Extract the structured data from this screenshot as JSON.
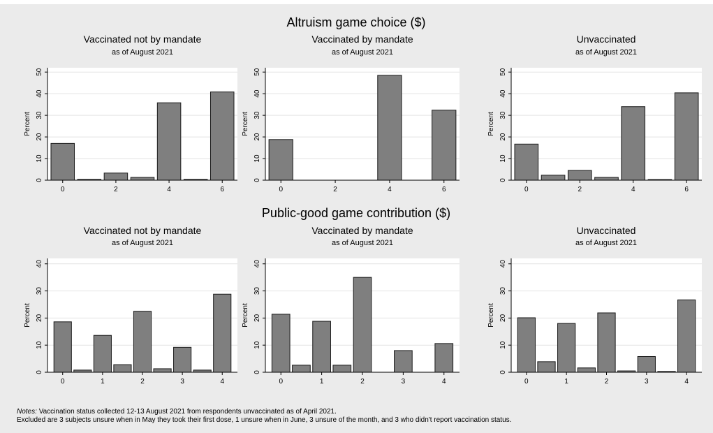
{
  "top_strip": "",
  "panels": [
    {
      "title": "Altruism game choice ($)",
      "chart_data": [
        {
          "type": "bar",
          "title": "Vaccinated not by mandate",
          "subtitle": "as of August 2021",
          "ylabel": "Percent",
          "categories": [
            0,
            1,
            2,
            3,
            4,
            5,
            6
          ],
          "values": [
            17.0,
            0.4,
            3.3,
            1.3,
            35.8,
            0.4,
            40.8
          ],
          "xticks": [
            0,
            2,
            4,
            6
          ],
          "yticks": [
            0,
            10,
            20,
            30,
            40,
            50
          ],
          "ylim": [
            0,
            52
          ],
          "grid": true
        },
        {
          "type": "bar",
          "title": "Vaccinated by mandate",
          "subtitle": "as of August 2021",
          "ylabel": "Percent",
          "categories": [
            0,
            4,
            6
          ],
          "values": [
            18.8,
            48.5,
            32.4
          ],
          "xticks": [
            0,
            2,
            4,
            6
          ],
          "yticks": [
            0,
            10,
            20,
            30,
            40,
            50
          ],
          "ylim": [
            0,
            52
          ],
          "grid": true
        },
        {
          "type": "bar",
          "title": "Unvaccinated",
          "subtitle": "as of August 2021",
          "ylabel": "Percent",
          "categories": [
            0,
            1,
            2,
            3,
            4,
            5,
            6
          ],
          "values": [
            16.7,
            2.3,
            4.5,
            1.3,
            34.0,
            0.3,
            40.4
          ],
          "xticks": [
            0,
            2,
            4,
            6
          ],
          "yticks": [
            0,
            10,
            20,
            30,
            40,
            50
          ],
          "ylim": [
            0,
            52
          ],
          "grid": true
        }
      ]
    },
    {
      "title": "Public-good game contribution ($)",
      "chart_data": [
        {
          "type": "bar",
          "title": "Vaccinated not by mandate",
          "subtitle": "as of August 2021",
          "ylabel": "Percent",
          "categories": [
            0,
            0.5,
            1,
            1.5,
            2,
            2.5,
            3,
            3.5,
            4
          ],
          "values": [
            18.6,
            0.8,
            13.6,
            2.8,
            22.5,
            1.3,
            9.2,
            0.8,
            28.8
          ],
          "xticks": [
            0,
            1,
            2,
            3,
            4
          ],
          "yticks": [
            0,
            10,
            20,
            30,
            40
          ],
          "ylim": [
            0,
            42
          ],
          "grid": true
        },
        {
          "type": "bar",
          "title": "Vaccinated by mandate",
          "subtitle": "as of August 2021",
          "ylabel": "Percent",
          "categories": [
            0,
            0.5,
            1,
            1.5,
            2,
            3,
            4
          ],
          "values": [
            21.4,
            2.6,
            18.8,
            2.6,
            35.0,
            8.0,
            10.6
          ],
          "xticks": [
            0,
            1,
            2,
            3,
            4
          ],
          "yticks": [
            0,
            10,
            20,
            30,
            40
          ],
          "ylim": [
            0,
            42
          ],
          "grid": true
        },
        {
          "type": "bar",
          "title": "Unvaccinated",
          "subtitle": "as of August 2021",
          "ylabel": "Percent",
          "categories": [
            0,
            0.5,
            1,
            1.5,
            2,
            2.5,
            3,
            3.5,
            4
          ],
          "values": [
            20.1,
            3.9,
            18.0,
            1.6,
            21.9,
            0.5,
            5.8,
            0.3,
            26.7
          ],
          "xticks": [
            0,
            1,
            2,
            3,
            4
          ],
          "yticks": [
            0,
            10,
            20,
            30,
            40
          ],
          "ylim": [
            0,
            42
          ],
          "grid": true
        }
      ]
    }
  ],
  "notes": {
    "label": "Notes:",
    "line1": "Vaccination status collected 12-13 August 2021 from respondents unvaccinated as of April 2021.",
    "line2": "Excluded are 3 subjects unsure when in May they took their first dose, 1 unsure when in June, 3 unsure of the month, and 3 who didn't report vaccination status."
  },
  "colors": {
    "background": "#ebebeb",
    "plot_bg": "#ffffff",
    "grid": "#e3e3e3",
    "bar_fill": "#7f7f7f",
    "bar_stroke": "#1a1a1a"
  }
}
